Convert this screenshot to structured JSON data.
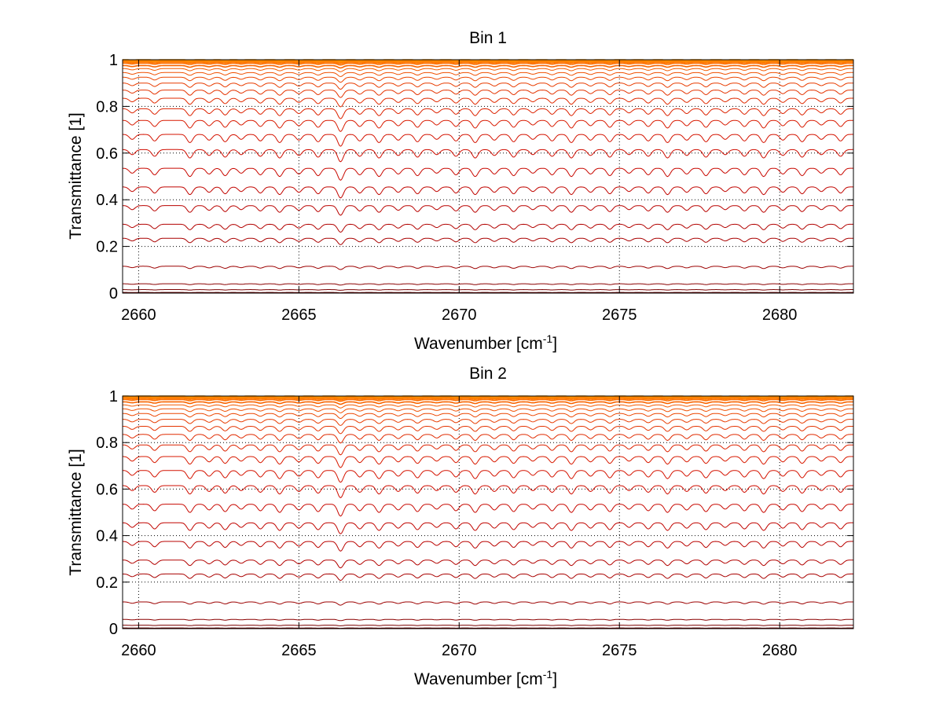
{
  "chart_data": [
    {
      "type": "line",
      "title": "Bin 1",
      "xlabel": "Wavenumber [cm",
      "xlabel_sup": "-1",
      "xlabel_end": "]",
      "ylabel": "Transmittance [1]",
      "xlim": [
        2659.5,
        2682.3
      ],
      "ylim": [
        0,
        1
      ],
      "xticks": [
        2660,
        2665,
        2670,
        2675,
        2680
      ],
      "yticks": [
        0,
        0.2,
        0.4,
        0.6,
        0.8,
        1
      ],
      "xtick_labels": [
        "2660",
        "2665",
        "2670",
        "2675",
        "2680"
      ],
      "ytick_labels": [
        "0",
        "0.2",
        "0.4",
        "0.6",
        "0.8",
        "1"
      ],
      "grid": true,
      "grid_style": "dotted",
      "absorption_lines_cm-1": [
        2659.8,
        2660.5,
        2661.6,
        2662.2,
        2662.7,
        2663.2,
        2663.8,
        2664.4,
        2665.0,
        2665.6,
        2666.3,
        2666.9,
        2667.5,
        2668.1,
        2668.7,
        2669.3,
        2669.9,
        2670.5,
        2671.1,
        2671.7,
        2672.3,
        2672.9,
        2673.5,
        2674.1,
        2674.7,
        2675.3,
        2675.9,
        2676.5,
        2677.1,
        2677.7,
        2678.3,
        2678.9,
        2679.5,
        2680.1,
        2680.7,
        2681.3,
        2681.9
      ],
      "series_baselines": [
        1.0,
        0.997,
        0.994,
        0.99,
        0.985,
        0.975,
        0.962,
        0.945,
        0.925,
        0.9,
        0.87,
        0.835,
        0.79,
        0.74,
        0.68,
        0.615,
        0.535,
        0.455,
        0.375,
        0.295,
        0.235,
        0.115,
        0.04,
        0.015,
        0.003
      ],
      "series_colors": [
        "#ff9a00",
        "#ff8f00",
        "#ff8400",
        "#ff7900",
        "#fc6e00",
        "#f86400",
        "#f45a00",
        "#f05000",
        "#ec4600",
        "#e83c00",
        "#e43300",
        "#e02a00",
        "#dc2200",
        "#d81a00",
        "#d41300",
        "#cf0d00",
        "#c80800",
        "#c10500",
        "#ba0300",
        "#b20200",
        "#a90100",
        "#9c0000",
        "#8a0000",
        "#7a0000",
        "#6a0000"
      ]
    },
    {
      "type": "line",
      "title": "Bin 2",
      "xlabel": "Wavenumber [cm",
      "xlabel_sup": "-1",
      "xlabel_end": "]",
      "ylabel": "Transmittance [1]",
      "xlim": [
        2659.5,
        2682.3
      ],
      "ylim": [
        0,
        1
      ],
      "xticks": [
        2660,
        2665,
        2670,
        2675,
        2680
      ],
      "yticks": [
        0,
        0.2,
        0.4,
        0.6,
        0.8,
        1
      ],
      "xtick_labels": [
        "2660",
        "2665",
        "2670",
        "2675",
        "2680"
      ],
      "ytick_labels": [
        "0",
        "0.2",
        "0.4",
        "0.6",
        "0.8",
        "1"
      ],
      "grid": true,
      "grid_style": "dotted",
      "absorption_lines_cm-1": [
        2659.8,
        2660.5,
        2661.6,
        2662.2,
        2662.7,
        2663.2,
        2663.8,
        2664.4,
        2665.0,
        2665.6,
        2666.3,
        2666.9,
        2667.5,
        2668.1,
        2668.7,
        2669.3,
        2669.9,
        2670.5,
        2671.1,
        2671.7,
        2672.3,
        2672.9,
        2673.5,
        2674.1,
        2674.7,
        2675.3,
        2675.9,
        2676.5,
        2677.1,
        2677.7,
        2678.3,
        2678.9,
        2679.5,
        2680.1,
        2680.7,
        2681.3,
        2681.9
      ],
      "series_baselines": [
        1.0,
        0.997,
        0.994,
        0.99,
        0.985,
        0.975,
        0.962,
        0.945,
        0.925,
        0.9,
        0.87,
        0.835,
        0.79,
        0.74,
        0.68,
        0.615,
        0.535,
        0.455,
        0.375,
        0.295,
        0.235,
        0.115,
        0.04,
        0.015,
        0.003
      ],
      "series_colors": [
        "#ff9a00",
        "#ff8f00",
        "#ff8400",
        "#ff7900",
        "#fc6e00",
        "#f86400",
        "#f45a00",
        "#f05000",
        "#ec4600",
        "#e83c00",
        "#e43300",
        "#e02a00",
        "#dc2200",
        "#d81a00",
        "#d41300",
        "#cf0d00",
        "#c80800",
        "#c10500",
        "#ba0300",
        "#b20200",
        "#a90100",
        "#9c0000",
        "#8a0000",
        "#7a0000",
        "#6a0000"
      ]
    }
  ]
}
